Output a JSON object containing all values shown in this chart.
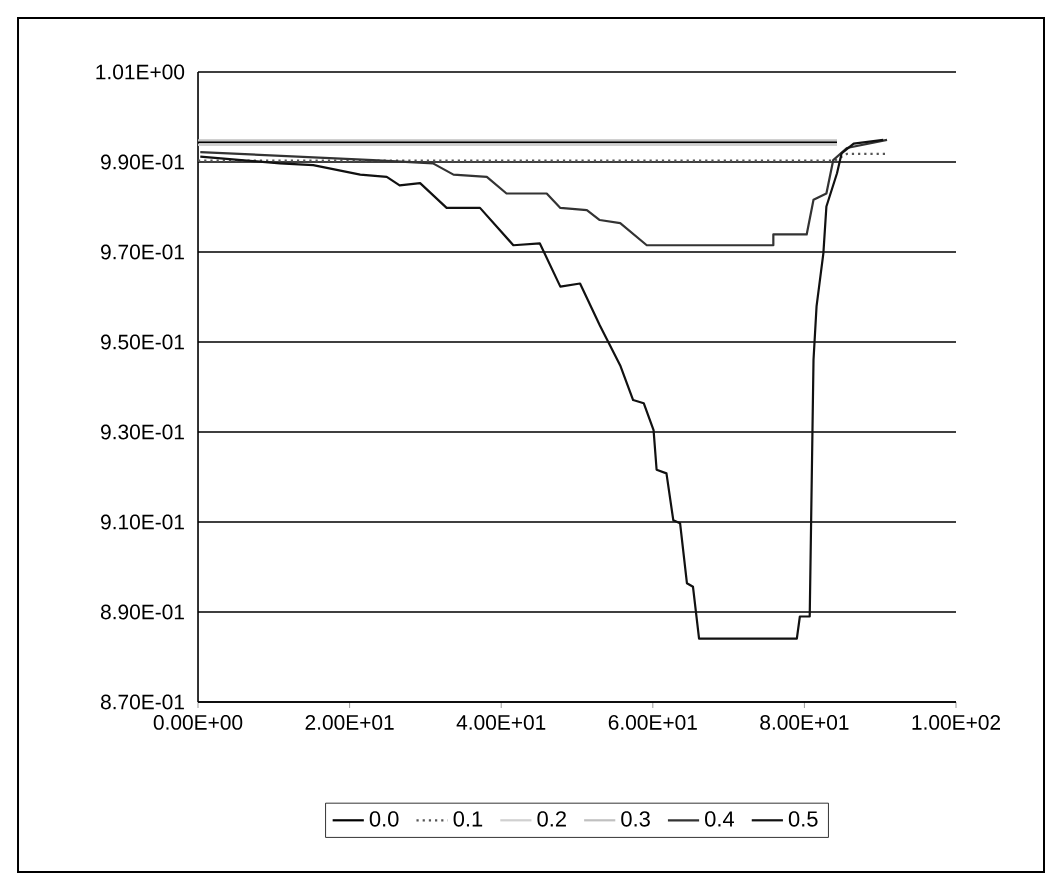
{
  "chart_data": {
    "type": "line",
    "xlim": [
      0,
      100
    ],
    "ylim": [
      0.87,
      1.01
    ],
    "xticks": [
      {
        "value": 0,
        "label": "0.00E+00"
      },
      {
        "value": 20,
        "label": "2.00E+01"
      },
      {
        "value": 40,
        "label": "4.00E+01"
      },
      {
        "value": 60,
        "label": "6.00E+01"
      },
      {
        "value": 80,
        "label": "8.00E+01"
      },
      {
        "value": 100,
        "label": "1.00E+02"
      }
    ],
    "yticks": [
      {
        "value": 0.87,
        "label": "8.70E-01"
      },
      {
        "value": 0.89,
        "label": "8.90E-01"
      },
      {
        "value": 0.91,
        "label": "9.10E-01"
      },
      {
        "value": 0.93,
        "label": "9.30E-01"
      },
      {
        "value": 0.95,
        "label": "9.50E-01"
      },
      {
        "value": 0.97,
        "label": "9.70E-01"
      },
      {
        "value": 0.99,
        "label": "9.90E-01"
      },
      {
        "value": 1.01,
        "label": "1.01E+00"
      }
    ],
    "grid": "y",
    "legend": "bottom",
    "marker": "none",
    "series": [
      {
        "name": "0.0",
        "color": "#000000",
        "line_style": "solid",
        "x": [
          0,
          84.3
        ],
        "values": [
          0.9944,
          0.9944
        ]
      },
      {
        "name": "0.1",
        "color": "#555555",
        "line_style": "dotted",
        "x": [
          0,
          84,
          85.6,
          90.9
        ],
        "values": [
          0.9903,
          0.9903,
          0.9918,
          0.9918
        ]
      },
      {
        "name": "0.2",
        "color": "#d0d0d0",
        "line_style": "solid",
        "x": [
          0,
          84.3
        ],
        "values": [
          0.9938,
          0.9938
        ]
      },
      {
        "name": "0.3",
        "color": "#c0c0c0",
        "line_style": "solid",
        "x": [
          0,
          84.3
        ],
        "values": [
          0.9948,
          0.9948
        ]
      },
      {
        "name": "0.4",
        "color": "#333333",
        "line_style": "solid",
        "x": [
          0.3,
          23.1,
          31.0,
          33.7,
          38.1,
          40.7,
          46.0,
          47.8,
          51.3,
          53.0,
          55.7,
          59.2,
          75.9,
          75.9,
          80.3,
          81.2,
          82.9,
          83.8,
          85.6,
          90.9
        ],
        "values": [
          0.9922,
          0.9904,
          0.9897,
          0.9872,
          0.9867,
          0.983,
          0.983,
          0.9798,
          0.9793,
          0.9771,
          0.9764,
          0.9715,
          0.9715,
          0.9739,
          0.9739,
          0.9816,
          0.983,
          0.9904,
          0.9931,
          0.9949
        ]
      },
      {
        "name": "0.5",
        "color": "#111111",
        "line_style": "solid",
        "x": [
          0.3,
          10.8,
          15.2,
          21.4,
          24.9,
          26.6,
          29.3,
          32.8,
          37.2,
          41.6,
          45.1,
          47.8,
          50.4,
          53.0,
          55.7,
          57.4,
          58.8,
          60.1,
          60.5,
          61.8,
          62.7,
          63.6,
          64.5,
          65.3,
          66.1,
          79.0,
          79.4,
          80.7,
          81.2,
          81.6,
          82.5,
          82.9,
          84.3,
          84.9,
          86.5,
          90.4
        ],
        "values": [
          0.9912,
          0.9897,
          0.9893,
          0.9872,
          0.9867,
          0.9848,
          0.9853,
          0.9798,
          0.9798,
          0.9715,
          0.9719,
          0.9623,
          0.963,
          0.9537,
          0.9448,
          0.9371,
          0.9364,
          0.9304,
          0.9216,
          0.9208,
          0.9104,
          0.9097,
          0.8964,
          0.8956,
          0.8841,
          0.8841,
          0.889,
          0.889,
          0.946,
          0.9579,
          0.9697,
          0.9801,
          0.9875,
          0.9919,
          0.9941,
          0.9949
        ]
      }
    ]
  }
}
